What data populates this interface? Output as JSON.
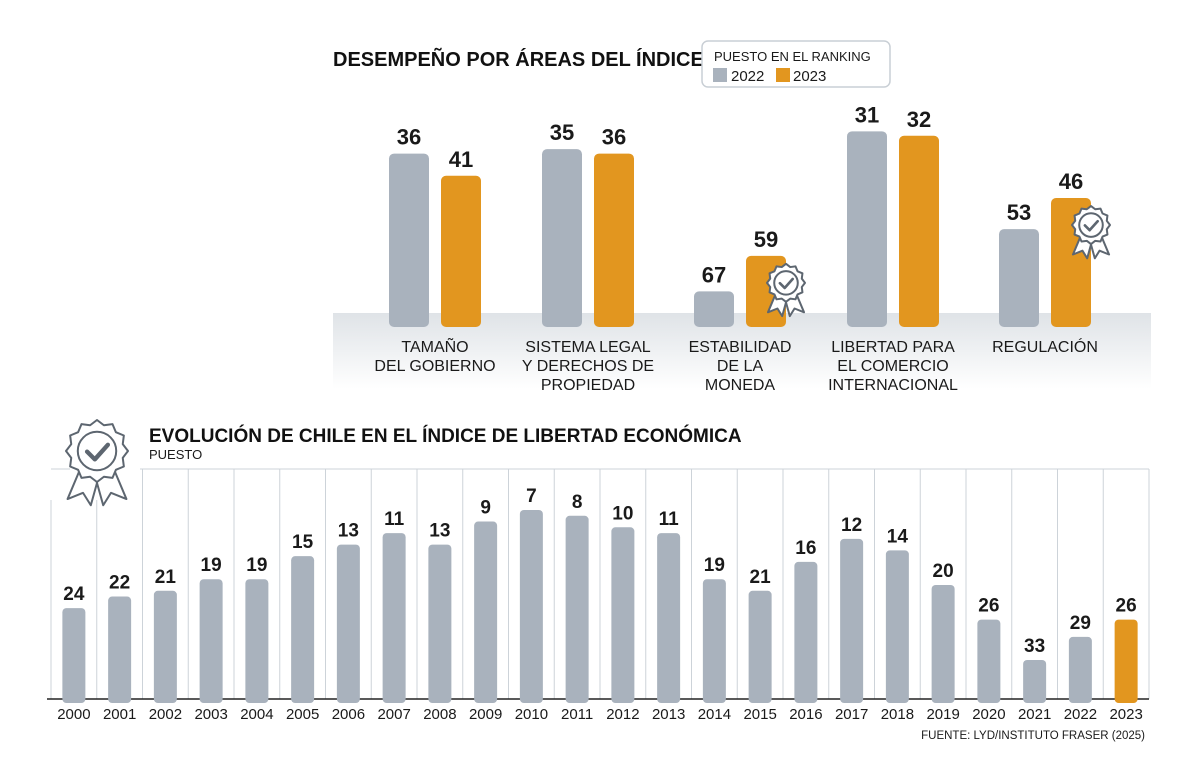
{
  "colors": {
    "y2022": "#a9b2bd",
    "y2023": "#e2961f",
    "band": "#dfe3e7",
    "icon": "#5d6670"
  },
  "source": "FUENTE: LYD/INSTITUTO FRASER (2025)",
  "chart_data": [
    {
      "type": "bar",
      "title": "DESEMPEÑO POR ÁREAS DEL ÍNDICE",
      "legend_title": "PUESTO EN EL RANKING",
      "legend_position": "top-right",
      "categories": [
        "TAMAÑO DEL GOBIERNO",
        "SISTEMA LEGAL Y DERECHOS DE PROPIEDAD",
        "ESTABILIDAD DE LA MONEDA",
        "LIBERTAD PARA EL COMERCIO INTERNACIONAL",
        "REGULACIÓN"
      ],
      "category_lines": [
        [
          "TAMAÑO",
          "DEL GOBIERNO"
        ],
        [
          "SISTEMA LEGAL",
          "Y DERECHOS DE",
          "PROPIEDAD"
        ],
        [
          "ESTABILIDAD",
          "DE LA",
          "MONEDA"
        ],
        [
          "LIBERTAD PARA",
          "EL COMERCIO",
          "INTERNACIONAL"
        ],
        [
          "REGULACIÓN"
        ]
      ],
      "series": [
        {
          "name": "2022",
          "values": [
            36,
            35,
            67,
            31,
            53
          ]
        },
        {
          "name": "2023",
          "values": [
            41,
            36,
            59,
            32,
            46
          ]
        }
      ],
      "improved": [
        false,
        false,
        true,
        false,
        true
      ],
      "grid": false
    },
    {
      "type": "bar",
      "title": "EVOLUCIÓN DE CHILE EN EL ÍNDICE DE LIBERTAD ECONÓMICA",
      "subtitle": "PUESTO",
      "categories": [
        "2000",
        "2001",
        "2002",
        "2003",
        "2004",
        "2005",
        "2006",
        "2007",
        "2008",
        "2009",
        "2010",
        "2011",
        "2012",
        "2013",
        "2014",
        "2015",
        "2016",
        "2017",
        "2018",
        "2019",
        "2020",
        "2021",
        "2022",
        "2023"
      ],
      "values": [
        24,
        22,
        21,
        19,
        19,
        15,
        13,
        11,
        13,
        9,
        7,
        8,
        10,
        11,
        19,
        21,
        16,
        12,
        14,
        20,
        26,
        33,
        29,
        26
      ],
      "highlight_category": "2023",
      "grid": true
    }
  ]
}
